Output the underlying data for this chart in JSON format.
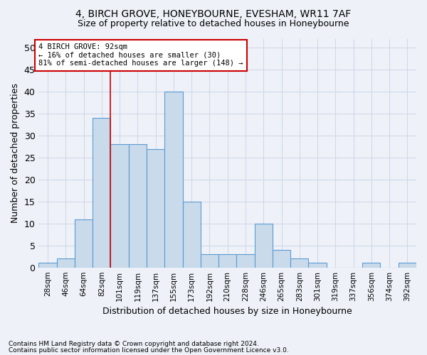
{
  "title1": "4, BIRCH GROVE, HONEYBOURNE, EVESHAM, WR11 7AF",
  "title2": "Size of property relative to detached houses in Honeybourne",
  "xlabel": "Distribution of detached houses by size in Honeybourne",
  "ylabel": "Number of detached properties",
  "footnote1": "Contains HM Land Registry data © Crown copyright and database right 2024.",
  "footnote2": "Contains public sector information licensed under the Open Government Licence v3.0.",
  "bar_labels": [
    "28sqm",
    "46sqm",
    "64sqm",
    "82sqm",
    "101sqm",
    "119sqm",
    "137sqm",
    "155sqm",
    "173sqm",
    "192sqm",
    "210sqm",
    "228sqm",
    "246sqm",
    "265sqm",
    "283sqm",
    "301sqm",
    "319sqm",
    "337sqm",
    "356sqm",
    "374sqm",
    "392sqm"
  ],
  "bar_values": [
    1,
    2,
    11,
    34,
    28,
    28,
    27,
    40,
    15,
    3,
    3,
    3,
    10,
    4,
    2,
    1,
    0,
    0,
    1,
    0,
    1
  ],
  "bar_color": "#c9daea",
  "bar_edge_color": "#5b9bd5",
  "grid_color": "#d0d8e8",
  "background_color": "#eef2f8",
  "axes_background": "#eef2f8",
  "vline_x": 3.5,
  "vline_color": "#cc0000",
  "annotation_text": "4 BIRCH GROVE: 92sqm\n← 16% of detached houses are smaller (30)\n81% of semi-detached houses are larger (148) →",
  "annotation_box_color": "#ffffff",
  "annotation_edge_color": "#cc0000",
  "ylim": [
    0,
    52
  ],
  "yticks": [
    0,
    5,
    10,
    15,
    20,
    25,
    30,
    35,
    40,
    45,
    50
  ]
}
